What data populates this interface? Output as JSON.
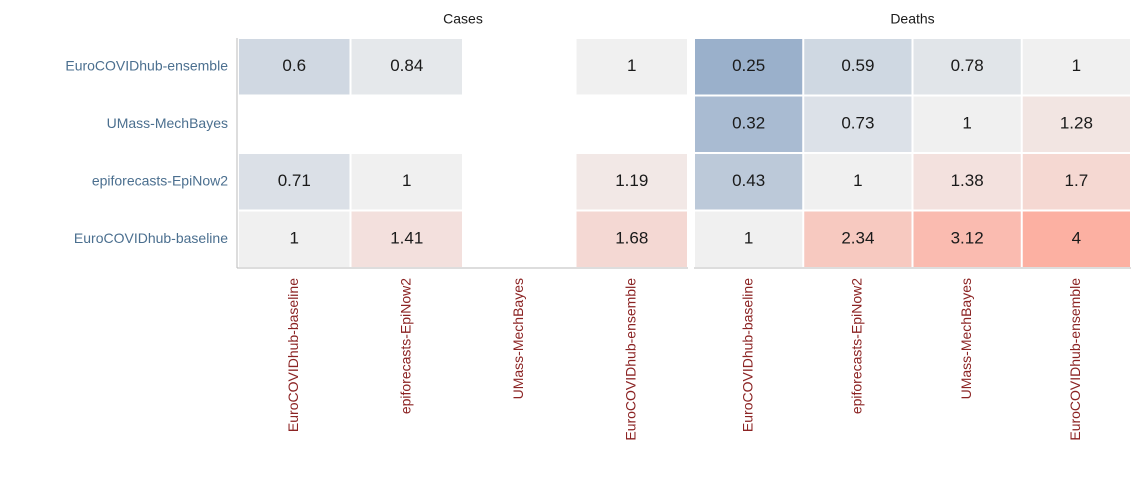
{
  "chart_data": {
    "type": "heatmap",
    "y_categories": [
      "EuroCOVIDhub-ensemble",
      "UMass-MechBayes",
      "epiforecasts-EpiNow2",
      "EuroCOVIDhub-baseline"
    ],
    "low_color": "#9ab0cb",
    "mid_color": "#f0f0f0",
    "high_color": "#fcb0a2",
    "panels": [
      {
        "title": "Cases",
        "x_categories": [
          "EuroCOVIDhub-baseline",
          "epiforecasts-EpiNow2",
          "UMass-MechBayes",
          "EuroCOVIDhub-ensemble"
        ],
        "values": [
          [
            0.6,
            0.84,
            null,
            1
          ],
          [
            null,
            null,
            null,
            null
          ],
          [
            0.71,
            1,
            null,
            1.19
          ],
          [
            1,
            1.41,
            null,
            1.68
          ]
        ]
      },
      {
        "title": "Deaths",
        "x_categories": [
          "EuroCOVIDhub-baseline",
          "epiforecasts-EpiNow2",
          "UMass-MechBayes",
          "EuroCOVIDhub-ensemble"
        ],
        "values": [
          [
            0.25,
            0.59,
            0.78,
            1
          ],
          [
            0.32,
            0.73,
            1,
            1.28
          ],
          [
            0.43,
            1,
            1.38,
            1.7
          ],
          [
            1,
            2.34,
            3.12,
            4
          ]
        ]
      }
    ]
  }
}
